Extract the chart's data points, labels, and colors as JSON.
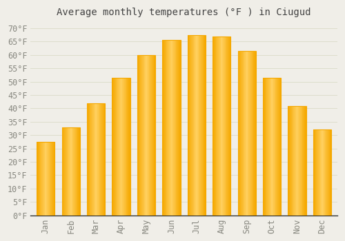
{
  "title": "Average monthly temperatures (°F ) in Ciugud",
  "months": [
    "Jan",
    "Feb",
    "Mar",
    "Apr",
    "May",
    "Jun",
    "Jul",
    "Aug",
    "Sep",
    "Oct",
    "Nov",
    "Dec"
  ],
  "values": [
    27.5,
    33.0,
    42.0,
    51.5,
    60.0,
    65.5,
    67.5,
    67.0,
    61.5,
    51.5,
    41.0,
    32.0
  ],
  "bar_color_center": "#FFD060",
  "bar_color_edge": "#F5A800",
  "background_color": "#F0EEE8",
  "plot_bg_color": "#F0EEE8",
  "grid_color": "#DDDDCC",
  "text_color": "#888880",
  "title_color": "#444444",
  "axis_color": "#333333",
  "ylim": [
    0,
    72
  ],
  "yticks": [
    0,
    5,
    10,
    15,
    20,
    25,
    30,
    35,
    40,
    45,
    50,
    55,
    60,
    65,
    70
  ],
  "ylabel_suffix": "°F",
  "title_fontsize": 10,
  "tick_fontsize": 8.5
}
